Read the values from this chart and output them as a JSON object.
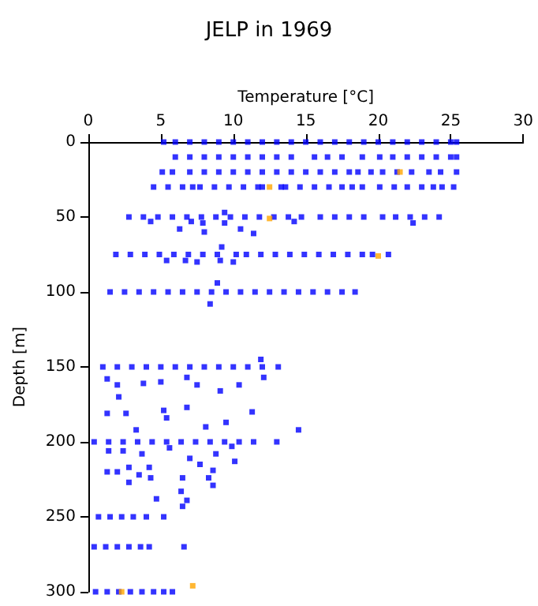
{
  "chart_data": {
    "type": "scatter",
    "title": "JELP in 1969",
    "xlabel": "Temperature [°C]",
    "ylabel": "Depth [m]",
    "xlim": [
      0,
      30
    ],
    "xticks": [
      0,
      5,
      10,
      15,
      20,
      25,
      30
    ],
    "ylim": [
      300,
      0
    ],
    "yticks": [
      0,
      50,
      100,
      150,
      200,
      250,
      300
    ],
    "marker": "square",
    "series": [
      {
        "color": "#0000ff",
        "x": [
          5.2,
          6,
          7,
          8,
          9,
          10,
          11,
          12,
          13,
          14,
          15,
          16,
          17,
          18,
          19,
          20,
          21,
          22,
          23,
          24,
          25,
          25.4
        ],
        "values": [
          0,
          0,
          0,
          0,
          0,
          0,
          0,
          0,
          0,
          0,
          0,
          0,
          0,
          0,
          0,
          0,
          0,
          0,
          0,
          0,
          0,
          0
        ]
      },
      {
        "color": "#0000ff",
        "x": [
          6,
          7,
          8,
          9,
          10,
          11,
          12,
          13,
          14,
          15.6,
          16.5,
          17.5,
          18.9,
          20.1,
          21,
          22,
          23,
          24,
          25,
          25.4
        ],
        "values": [
          10,
          10,
          10,
          10,
          10,
          10,
          10,
          10,
          10,
          10,
          10,
          10,
          10,
          10,
          10,
          10,
          10,
          10,
          10,
          10
        ]
      },
      {
        "color": "#0000ff",
        "x": [
          5.1,
          5.8,
          7,
          8,
          9,
          10,
          11,
          12,
          13,
          14,
          15,
          16,
          17,
          18,
          18.6,
          19.5,
          20.3,
          21.3,
          22.3,
          23.5,
          24.3,
          25.4
        ],
        "values": [
          20,
          20,
          20,
          20,
          20,
          20,
          20,
          20,
          20,
          20,
          20,
          20,
          20,
          20,
          20,
          20,
          20,
          20,
          20,
          20,
          20,
          20
        ]
      },
      {
        "color": "#0000ff",
        "x": [
          4.5,
          5.5,
          6.5,
          7.2,
          7.7,
          8.7,
          9.7,
          10.7,
          11.7,
          12,
          13.3,
          13.6,
          14.6,
          15.6,
          16.6,
          17.5,
          18.2,
          18.9,
          20.1,
          21.1,
          22,
          23,
          23.8,
          24.4,
          25.2
        ],
        "values": [
          30,
          30,
          30,
          30,
          30,
          30,
          30,
          30,
          30,
          30,
          30,
          30,
          30,
          30,
          30,
          30,
          30,
          30,
          30,
          30,
          30,
          30,
          30,
          30,
          30
        ]
      },
      {
        "color": "#0000ff",
        "x": [
          2.8,
          3.8,
          4.8,
          5.8,
          6.8,
          7.8,
          8.8,
          9.8,
          10.8,
          11.8,
          12.8,
          13.8,
          14.7,
          16,
          17,
          18,
          19,
          20.3,
          21.2,
          22.2,
          23.2,
          24.2
        ],
        "values": [
          50,
          50,
          50,
          50,
          50,
          50,
          50,
          50,
          50,
          50,
          50,
          50,
          50,
          50,
          50,
          50,
          50,
          50,
          50,
          50,
          50,
          50
        ]
      },
      {
        "color": "#0000ff",
        "x": [
          1.9,
          2.9,
          3.9,
          4.9,
          5.9,
          6.9,
          7.9,
          8.9,
          10.2,
          10.9,
          11.9,
          12.9,
          13.9,
          14.9,
          15.9,
          16.9,
          17.9,
          18.9,
          19.6,
          20.7
        ],
        "values": [
          75,
          75,
          75,
          75,
          75,
          75,
          75,
          75,
          75,
          75,
          75,
          75,
          75,
          75,
          75,
          75,
          75,
          75,
          75,
          75
        ]
      },
      {
        "color": "#0000ff",
        "x": [
          1.5,
          2.5,
          3.5,
          4.5,
          5.5,
          6.5,
          7.5,
          8.5,
          9.5,
          10.5,
          11.5,
          12.5,
          13.5,
          14.5,
          15.5,
          16.5,
          17.5,
          18.4
        ],
        "values": [
          100,
          100,
          100,
          100,
          100,
          100,
          100,
          100,
          100,
          100,
          100,
          100,
          100,
          100,
          100,
          100,
          100,
          100
        ]
      },
      {
        "color": "#0000ff",
        "x": [
          1,
          2,
          3,
          4,
          5,
          6,
          7,
          8,
          9,
          10,
          11,
          12,
          13.1
        ],
        "values": [
          150,
          150,
          150,
          150,
          150,
          150,
          150,
          150,
          150,
          150,
          150,
          150,
          150
        ]
      },
      {
        "color": "#0000ff",
        "x": [
          0.4,
          1.4,
          2.4,
          3.4,
          4.4,
          5.4,
          6.4,
          7.4,
          8.4,
          9.4,
          10.4,
          11.4,
          13
        ],
        "values": [
          200,
          200,
          200,
          200,
          200,
          200,
          200,
          200,
          200,
          200,
          200,
          200,
          200
        ]
      },
      {
        "color": "#0000ff",
        "x": [
          0.7,
          1.5,
          2.3,
          3.1,
          4,
          5.2
        ],
        "values": [
          250,
          250,
          250,
          250,
          250,
          250
        ]
      },
      {
        "color": "#0000ff",
        "x": [
          0.4,
          1.2,
          2,
          2.8,
          3.6,
          4.2,
          6.6
        ],
        "values": [
          270,
          270,
          270,
          270,
          270,
          270,
          270
        ]
      },
      {
        "color": "#0000ff",
        "x": [
          0.5,
          1.3,
          2.1,
          2.9,
          3.7,
          4.5,
          5.2,
          5.8
        ],
        "values": [
          300,
          300,
          300,
          300,
          300,
          300,
          300,
          300
        ]
      },
      {
        "color": "#0000ff",
        "x": [
          9.4,
          4.3,
          7.1,
          7.9,
          8,
          6.3,
          10.5,
          11.4,
          9.4,
          22.4,
          14.2,
          9.2,
          5.4,
          6.7,
          7.5,
          9.1,
          10,
          8.9,
          8.4,
          11.9,
          1.3,
          2,
          3.8,
          5,
          6.8,
          7.5,
          9.1,
          10.4,
          12.1,
          2.1,
          1.3,
          2.6,
          5.2,
          6.8,
          5.4,
          9.5,
          11.3,
          14.5,
          3.3,
          8.1,
          1.4,
          2.4,
          3.7,
          5.6,
          7,
          8.8,
          9.9,
          10.1,
          1.3,
          2,
          2.8,
          4.2,
          3.5,
          4.3,
          6.5,
          7.7,
          8.6,
          8.3,
          2.8,
          8.6,
          6.4,
          4.7,
          6.8,
          6.5
        ],
        "values": [
          47,
          53,
          53,
          54,
          60,
          58,
          58,
          61,
          54,
          54,
          53,
          70,
          79,
          79,
          80,
          79,
          80,
          94,
          108,
          145,
          158,
          162,
          161,
          160,
          157,
          162,
          166,
          162,
          157,
          170,
          181,
          181,
          179,
          177,
          184,
          187,
          180,
          192,
          192,
          190,
          206,
          206,
          208,
          204,
          211,
          208,
          203,
          213,
          220,
          220,
          217,
          217,
          222,
          224,
          224,
          215,
          219,
          224,
          227,
          229,
          233,
          238,
          239,
          243
        ]
      },
      {
        "color": "#ffa500",
        "x": [
          21.5,
          12.5,
          12.5,
          20,
          7.2,
          2.3
        ],
        "values": [
          20,
          30,
          51,
          76,
          296,
          300
        ]
      }
    ]
  }
}
